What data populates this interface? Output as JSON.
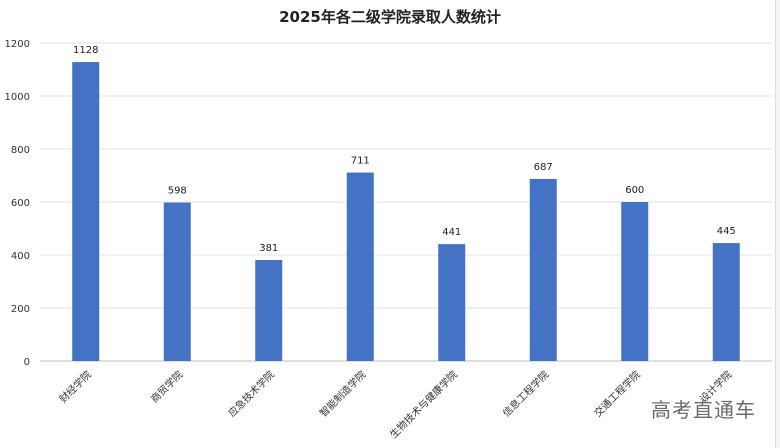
{
  "chart_data": {
    "type": "bar",
    "title": "2025年各二级学院录取人数统计",
    "categories": [
      "财经学院",
      "商贸学院",
      "应急技术学院",
      "智能制造学院",
      "生物技术与健康学院",
      "信息工程学院",
      "交通工程学院",
      "设计学院"
    ],
    "values": [
      1128,
      598,
      381,
      711,
      441,
      687,
      600,
      445
    ],
    "ylim": [
      0,
      1200
    ],
    "yticks": [
      0,
      200,
      400,
      600,
      800,
      1000,
      1200
    ],
    "grid": true,
    "legend": "none",
    "bar_color": "#4472C4"
  },
  "watermark": "高考直通车"
}
